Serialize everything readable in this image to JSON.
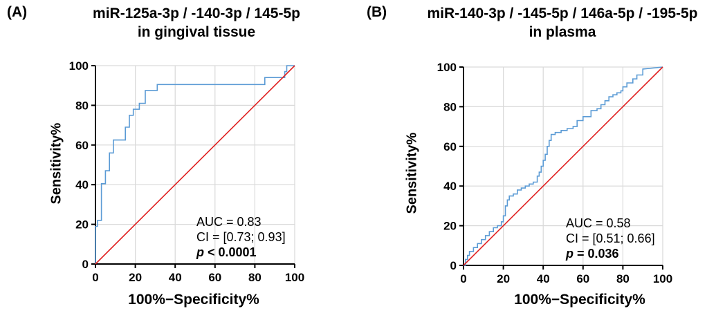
{
  "chart_data": [
    {
      "type": "line",
      "panel_label": "(A)",
      "title_line1": "miR-125a-3p / -140-3p / 145-5p",
      "title_line2": "in gingival tissue",
      "xlabel": "100%−Specificity%",
      "ylabel": "Sensitivity%",
      "xlim": [
        0,
        100
      ],
      "ylim": [
        0,
        100
      ],
      "ticks": [
        0,
        20,
        40,
        60,
        80,
        100
      ],
      "grid": true,
      "colors": {
        "roc": "#5b9bd5",
        "reference": "#e02020"
      },
      "stats": {
        "auc": "AUC = 0.83",
        "ci": "CI = [0.73; 0.93]",
        "p_sym": "p",
        "p_val": " < 0.0001"
      },
      "series": [
        {
          "role": "roc",
          "x": [
            0,
            0,
            1,
            1,
            3,
            3,
            5,
            5,
            7,
            7,
            9,
            9,
            11,
            11,
            15,
            15,
            17,
            17,
            19,
            19,
            22,
            22,
            25,
            25,
            31,
            31,
            54,
            54,
            85,
            85,
            93,
            93,
            95,
            95,
            96,
            96,
            100
          ],
          "y": [
            0,
            19,
            19,
            22,
            22,
            40.5,
            40.5,
            47,
            47,
            56,
            56,
            62.5,
            62.5,
            62.5,
            62.5,
            69,
            69,
            75,
            75,
            78,
            78,
            81,
            81,
            87.5,
            87.5,
            90.5,
            90.5,
            90.5,
            90.5,
            94,
            94,
            94,
            94,
            97,
            97,
            100,
            100
          ]
        },
        {
          "role": "reference",
          "x": [
            0,
            100
          ],
          "y": [
            0,
            100
          ]
        }
      ]
    },
    {
      "type": "line",
      "panel_label": "(B)",
      "title_line1": "miR-140-3p / -145-5p / 146a-5p / -195-5p",
      "title_line2": "in plasma",
      "xlabel": "100%−Specificity%",
      "ylabel": "Sensitivity%",
      "xlim": [
        0,
        100
      ],
      "ylim": [
        0,
        100
      ],
      "ticks": [
        0,
        20,
        40,
        60,
        80,
        100
      ],
      "grid": true,
      "colors": {
        "roc": "#5b9bd5",
        "reference": "#e02020"
      },
      "stats": {
        "auc": "AUC = 0.58",
        "ci": "CI = [0.51; 0.66]",
        "p_sym": "p",
        "p_val": " = 0.036"
      },
      "series": [
        {
          "role": "roc",
          "x": [
            0,
            1,
            1,
            2,
            2,
            3,
            3,
            5,
            5,
            7,
            7,
            9,
            9,
            11,
            11,
            13,
            13,
            15,
            15,
            17,
            17,
            19,
            19,
            20,
            20,
            21,
            21,
            22,
            22,
            23,
            23,
            25,
            25,
            27,
            27,
            29,
            29,
            31,
            31,
            33,
            33,
            35,
            35,
            37,
            37,
            38,
            38,
            39,
            39,
            40,
            40,
            41,
            41,
            42,
            42,
            43,
            43,
            44,
            44,
            46,
            46,
            49,
            49,
            52,
            52,
            55,
            55,
            57,
            57,
            60,
            60,
            64,
            64,
            67,
            67,
            69,
            69,
            71,
            71,
            73,
            73,
            75,
            75,
            77,
            77,
            79,
            79,
            80,
            80,
            82,
            82,
            85,
            85,
            87,
            87,
            90,
            90,
            100
          ],
          "y": [
            0,
            0,
            3,
            3,
            5,
            5,
            7,
            7,
            9,
            9,
            11,
            11,
            13,
            13,
            15,
            15,
            17,
            17,
            19,
            19,
            20,
            20,
            22,
            22,
            25,
            25,
            30,
            30,
            33,
            33,
            35,
            35,
            36,
            36,
            38,
            38,
            39,
            39,
            40,
            40,
            41,
            41,
            42,
            42,
            45,
            45,
            47,
            47,
            50,
            50,
            53,
            53,
            56,
            56,
            60,
            60,
            63,
            63,
            66,
            66,
            67,
            67,
            68,
            68,
            69,
            69,
            70,
            70,
            73,
            73,
            75,
            75,
            78,
            78,
            79,
            79,
            81,
            81,
            83,
            83,
            85,
            85,
            86,
            86,
            87,
            87,
            88,
            88,
            90,
            90,
            92,
            92,
            94,
            94,
            96,
            96,
            99,
            100
          ]
        },
        {
          "role": "reference",
          "x": [
            0,
            100
          ],
          "y": [
            0,
            100
          ]
        }
      ]
    }
  ]
}
